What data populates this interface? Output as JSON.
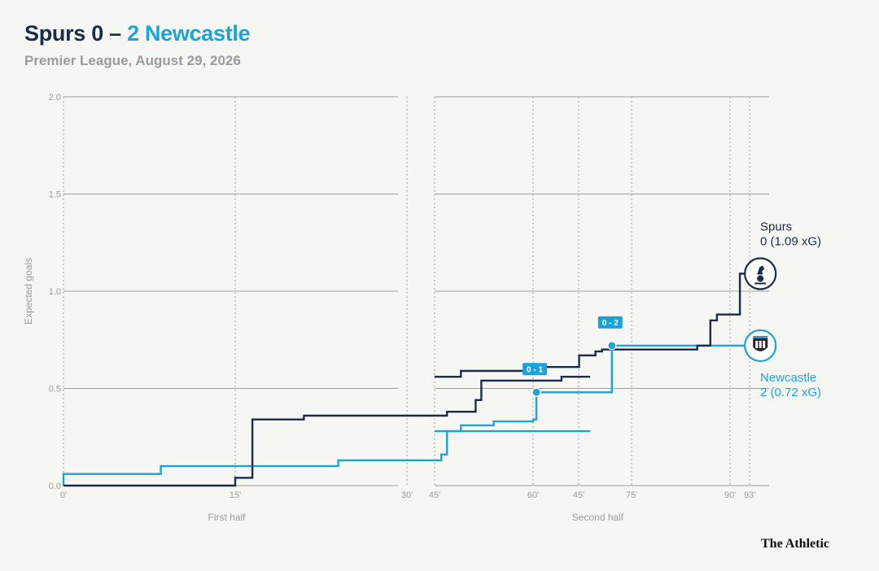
{
  "header": {
    "title_home": "Spurs 0 – ",
    "title_away": "2 Newcastle",
    "subtitle": "Premier League, August 29, 2026"
  },
  "brand": "The Athletic",
  "colors": {
    "home": "#1b2b4d",
    "away": "#1aa3d9",
    "grid": "#9d9d9b",
    "muted": "#9a9a98"
  },
  "chart_data": {
    "type": "line",
    "step": true,
    "ylabel": "Expected goals",
    "ylim": [
      0,
      2.0
    ],
    "yticks": [
      {
        "value": 0.0,
        "label": "0.0"
      },
      {
        "value": 0.5,
        "label": "0.5"
      },
      {
        "value": 1.0,
        "label": "1.0"
      },
      {
        "value": 1.5,
        "label": "1.5"
      },
      {
        "value": 2.0,
        "label": "2.0"
      }
    ],
    "grid": true,
    "panels": [
      {
        "id": "first",
        "xlabel": "First half",
        "xlim": [
          0,
          46
        ],
        "xticks": [
          {
            "value": 0,
            "label": "0'"
          },
          {
            "value": 15,
            "label": "15'"
          },
          {
            "value": 30,
            "label": "30'"
          },
          {
            "value": 45,
            "label": "45'"
          }
        ]
      },
      {
        "id": "second",
        "xlabel": "Second half",
        "xlim": [
          45,
          94
        ],
        "xticks": [
          {
            "value": 45,
            "label": "45'"
          },
          {
            "value": 60,
            "label": "60'"
          },
          {
            "value": 75,
            "label": "75'"
          },
          {
            "value": 90,
            "label": "90'"
          },
          {
            "value": 93,
            "label": "93'"
          }
        ]
      }
    ],
    "series": [
      {
        "team": "home",
        "end_label": [
          "Spurs",
          "0 (1.09 xG)"
        ],
        "icon": "spurs-crest-icon",
        "segments": [
          {
            "panel": "first",
            "points": [
              [
                0,
                0
              ],
              [
                15,
                0
              ],
              [
                15,
                0.04
              ],
              [
                16.5,
                0.04
              ],
              [
                16.5,
                0.34
              ],
              [
                21,
                0.34
              ],
              [
                21,
                0.36
              ],
              [
                33.5,
                0.36
              ],
              [
                33.5,
                0.38
              ],
              [
                36,
                0.38
              ],
              [
                36,
                0.44
              ],
              [
                36.5,
                0.44
              ],
              [
                36.5,
                0.54
              ],
              [
                43.5,
                0.54
              ],
              [
                43.5,
                0.56
              ],
              [
                46,
                0.56
              ]
            ]
          },
          {
            "panel": "second",
            "points": [
              [
                45,
                0.56
              ],
              [
                49,
                0.56
              ],
              [
                49,
                0.59
              ],
              [
                59,
                0.59
              ],
              [
                59,
                0.61
              ],
              [
                67,
                0.61
              ],
              [
                67,
                0.67
              ],
              [
                69.5,
                0.67
              ],
              [
                69.5,
                0.69
              ],
              [
                70.5,
                0.69
              ],
              [
                70.5,
                0.7
              ],
              [
                85,
                0.7
              ],
              [
                85,
                0.72
              ],
              [
                87,
                0.72
              ],
              [
                87,
                0.85
              ],
              [
                88,
                0.85
              ],
              [
                88,
                0.88
              ],
              [
                91.5,
                0.88
              ],
              [
                91.5,
                1.09
              ],
              [
                93,
                1.09
              ]
            ]
          }
        ]
      },
      {
        "team": "away",
        "end_label": [
          "Newcastle",
          "2 (0.72 xG)"
        ],
        "icon": "newcastle-crest-icon",
        "segments": [
          {
            "panel": "first",
            "points": [
              [
                0,
                0
              ],
              [
                0,
                0.06
              ],
              [
                8.5,
                0.06
              ],
              [
                8.5,
                0.1
              ],
              [
                24,
                0.1
              ],
              [
                24,
                0.13
              ],
              [
                33,
                0.13
              ],
              [
                33,
                0.16
              ],
              [
                33.5,
                0.16
              ],
              [
                33.5,
                0.28
              ],
              [
                46,
                0.28
              ]
            ]
          },
          {
            "panel": "second",
            "points": [
              [
                45,
                0.28
              ],
              [
                49,
                0.28
              ],
              [
                49,
                0.31
              ],
              [
                54,
                0.31
              ],
              [
                54,
                0.33
              ],
              [
                60,
                0.33
              ],
              [
                60,
                0.34
              ],
              [
                60.5,
                0.34
              ],
              [
                60.5,
                0.48
              ],
              [
                72,
                0.48
              ],
              [
                72,
                0.72
              ],
              [
                93,
                0.72
              ]
            ]
          }
        ]
      }
    ],
    "annotations": [
      {
        "label": "0 - 1",
        "x": 60.5,
        "y": 0.48,
        "panel": "second"
      },
      {
        "label": "0 - 2",
        "x": 72,
        "y": 0.72,
        "panel": "second"
      }
    ]
  }
}
